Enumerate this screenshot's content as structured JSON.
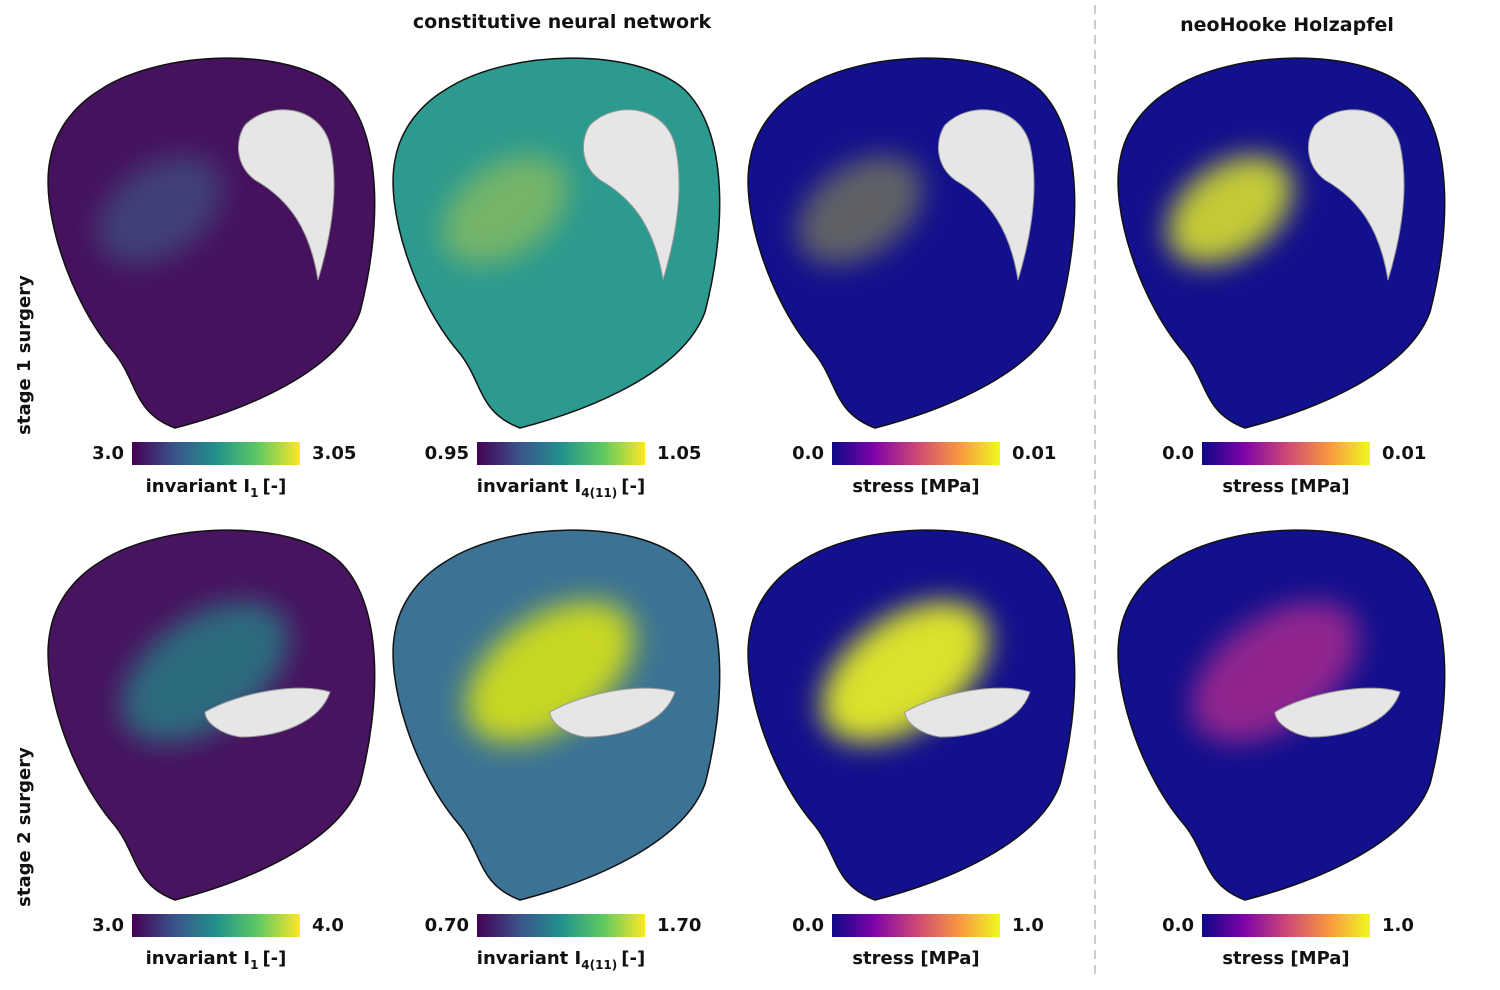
{
  "header": {
    "left_title": "constitutive neural network",
    "right_title": "neoHooke Holzapfel"
  },
  "rows": [
    {
      "label": "stage 1 surgery",
      "panels": [
        {
          "min": "3.0",
          "max": "3.05",
          "title": "invariant I",
          "subscript": "1",
          "unit": "[-]"
        },
        {
          "min": "0.95",
          "max": "1.05",
          "title": "invariant I",
          "subscript": "4(11)",
          "unit": "[-]"
        },
        {
          "min": "0.0",
          "max": "0.01",
          "title": "stress [MPa]"
        },
        {
          "min": "0.0",
          "max": "0.01",
          "title": "stress [MPa]"
        }
      ]
    },
    {
      "label": "stage 2 surgery",
      "panels": [
        {
          "min": "3.0",
          "max": "4.0",
          "title": "invariant I",
          "subscript": "1",
          "unit": "[-]"
        },
        {
          "min": "0.70",
          "max": "1.70",
          "title": "invariant I",
          "subscript": "4(11)",
          "unit": "[-]"
        },
        {
          "min": "0.0",
          "max": "1.0",
          "title": "stress [MPa]"
        },
        {
          "min": "0.0",
          "max": "1.0",
          "title": "stress [MPa]"
        }
      ]
    }
  ]
}
